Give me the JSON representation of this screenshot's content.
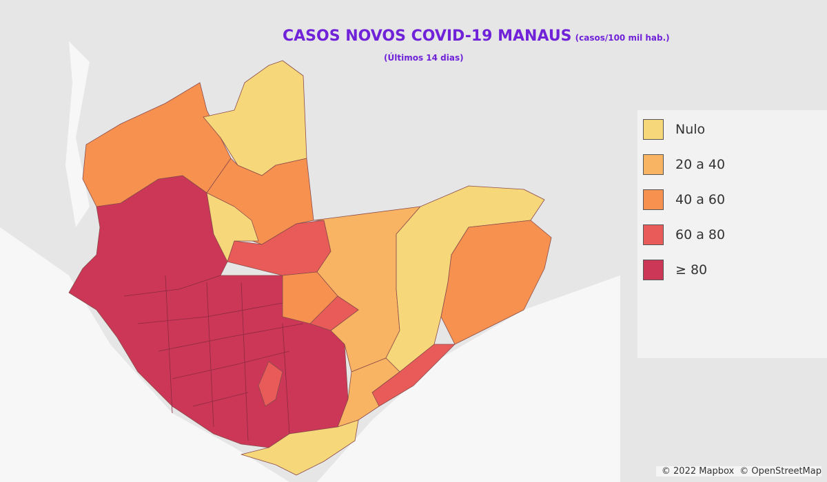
{
  "header": {
    "title": "CASOS NOVOS COVID-19 MANAUS",
    "unit": "(casos/100 mil hab.)",
    "subtitle": "(Últimos 14 dias)"
  },
  "legend": {
    "items": [
      {
        "label": "Nulo",
        "color": "#f6d77a"
      },
      {
        "label": "20 a 40",
        "color": "#f9b463"
      },
      {
        "label": "40 a 60",
        "color": "#f7914f"
      },
      {
        "label": "60 a 80",
        "color": "#e95b58"
      },
      {
        "label": "≥ 80",
        "color": "#cc3657"
      }
    ]
  },
  "attribution": [
    "© 2022 Mapbox",
    "© OpenStreetMap"
  ]
}
